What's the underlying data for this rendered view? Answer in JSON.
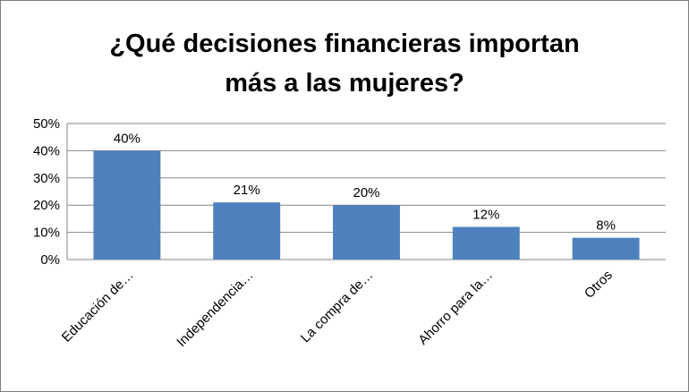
{
  "chart_data": {
    "type": "bar",
    "title_lines": [
      "¿Qué decisiones financieras importan",
      "más a las mujeres?"
    ],
    "categories": [
      "Educación de…",
      "Independencia…",
      "La compra de…",
      "Ahorro para la…",
      "Otros"
    ],
    "values": [
      40,
      21,
      20,
      12,
      8
    ],
    "value_labels": [
      "40%",
      "21%",
      "20%",
      "12%",
      "8%"
    ],
    "y_ticks": [
      "0%",
      "10%",
      "20%",
      "30%",
      "40%",
      "50%"
    ],
    "ylim": [
      0,
      50
    ],
    "xlabel": "",
    "ylabel": "",
    "grid": true,
    "legend": "none",
    "bar_color": "#4f81bd",
    "grid_color": "#878787"
  }
}
